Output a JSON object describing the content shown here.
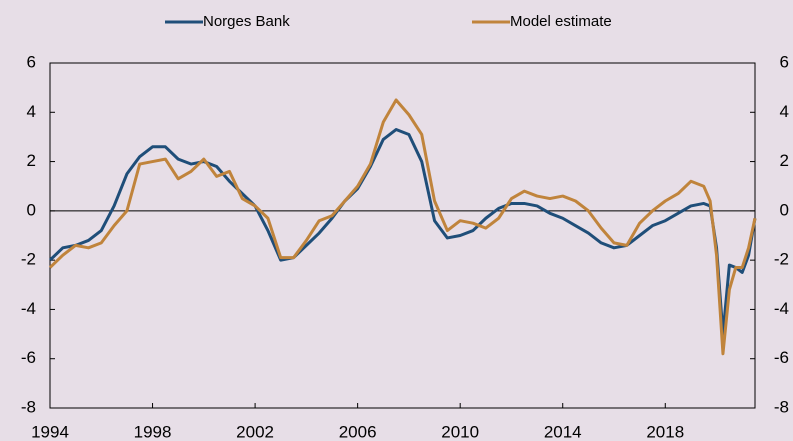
{
  "chart_data": {
    "type": "line",
    "x": [
      1994,
      1994.5,
      1995,
      1995.5,
      1996,
      1996.5,
      1997,
      1997.5,
      1998,
      1998.5,
      1999,
      1999.5,
      2000,
      2000.5,
      2001,
      2001.5,
      2002,
      2002.5,
      2003,
      2003.5,
      2004,
      2004.5,
      2005,
      2005.5,
      2006,
      2006.5,
      2007,
      2007.5,
      2008,
      2008.5,
      2009,
      2009.5,
      2010,
      2010.5,
      2011,
      2011.5,
      2012,
      2012.5,
      2013,
      2013.5,
      2014,
      2014.5,
      2015,
      2015.5,
      2016,
      2016.5,
      2017,
      2017.5,
      2018,
      2018.5,
      2019,
      2019.5,
      2019.75,
      2020,
      2020.25,
      2020.5,
      2020.75,
      2021,
      2021.25,
      2021.5
    ],
    "series": [
      {
        "name": "Norges Bank",
        "color": "#1f4e79",
        "values": [
          -2.0,
          -1.5,
          -1.4,
          -1.2,
          -0.8,
          0.2,
          1.5,
          2.2,
          2.6,
          2.6,
          2.1,
          1.9,
          2.0,
          1.8,
          1.2,
          0.7,
          0.2,
          -0.8,
          -2.0,
          -1.9,
          -1.4,
          -0.9,
          -0.3,
          0.4,
          0.9,
          1.8,
          2.9,
          3.3,
          3.1,
          2.0,
          -0.4,
          -1.1,
          -1.0,
          -0.8,
          -0.3,
          0.1,
          0.3,
          0.3,
          0.2,
          -0.1,
          -0.3,
          -0.6,
          -0.9,
          -1.3,
          -1.5,
          -1.4,
          -1.0,
          -0.6,
          -0.4,
          -0.1,
          0.2,
          0.3,
          0.2,
          -1.5,
          -5.0,
          -2.2,
          -2.3,
          -2.5,
          -1.8,
          -0.3
        ]
      },
      {
        "name": "Model estimate",
        "color": "#c0843c",
        "values": [
          -2.3,
          -1.8,
          -1.4,
          -1.5,
          -1.3,
          -0.6,
          0.0,
          1.9,
          2.0,
          2.1,
          1.3,
          1.6,
          2.1,
          1.4,
          1.6,
          0.5,
          0.2,
          -0.3,
          -1.9,
          -1.9,
          -1.2,
          -0.4,
          -0.2,
          0.4,
          1.0,
          1.9,
          3.6,
          4.5,
          3.9,
          3.1,
          0.4,
          -0.8,
          -0.4,
          -0.5,
          -0.7,
          -0.3,
          0.5,
          0.8,
          0.6,
          0.5,
          0.6,
          0.4,
          0.0,
          -0.7,
          -1.3,
          -1.4,
          -0.5,
          0.0,
          0.4,
          0.7,
          1.2,
          1.0,
          0.4,
          -1.8,
          -5.8,
          -3.2,
          -2.3,
          -2.3,
          -1.5,
          -0.3
        ]
      }
    ],
    "xlim": [
      1994,
      2021.5
    ],
    "xticks": [
      1994,
      1998,
      2002,
      2006,
      2010,
      2014,
      2018
    ],
    "ylim": [
      -8,
      6
    ],
    "yticks": [
      -8,
      -6,
      -4,
      -2,
      0,
      2,
      4,
      6
    ],
    "y2lim": [
      -8,
      6
    ],
    "y2ticks": [
      -8,
      -6,
      -4,
      -2,
      0,
      2,
      4,
      6
    ]
  }
}
